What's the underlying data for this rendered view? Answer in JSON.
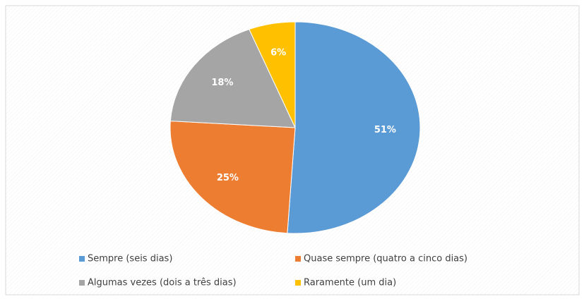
{
  "chart_data": {
    "type": "pie",
    "categories": [
      "Sempre (seis dias)",
      "Quase sempre (quatro a cinco dias)",
      "Algumas vezes (dois a três dias)",
      "Raramente (um dia)"
    ],
    "values": [
      51,
      25,
      18,
      6
    ],
    "value_labels": [
      "51%",
      "25%",
      "18%",
      "6%"
    ],
    "colors": [
      "#5b9bd5",
      "#ed7d31",
      "#a5a5a5",
      "#ffc000"
    ],
    "legend": "bottom"
  }
}
